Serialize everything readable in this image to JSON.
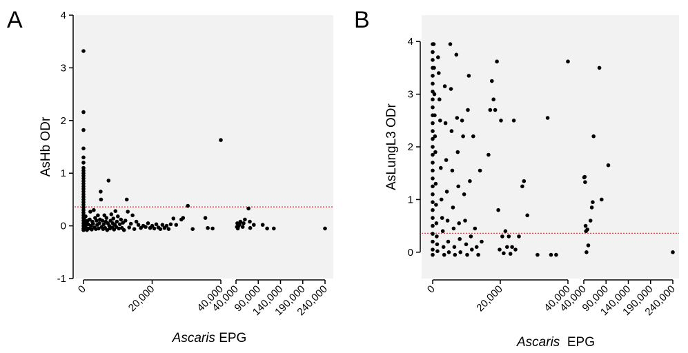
{
  "chart_data": [
    {
      "panel": "A",
      "type": "scatter",
      "ylabel": "AsHb ODr",
      "xlabel_italic": "Ascaris",
      "xlabel_rest": " EPG",
      "ylim": [
        -1,
        4
      ],
      "yticks": [
        -1,
        0,
        1,
        2,
        3,
        4
      ],
      "x_segments": [
        {
          "from": 0,
          "to": 40000,
          "ticks": [
            0,
            20000,
            40000
          ],
          "labels": [
            "0",
            "20,000",
            "40,000"
          ]
        },
        {
          "from": 40000,
          "to": 240000,
          "ticks": [
            40000,
            90000,
            140000,
            190000,
            240000
          ],
          "labels": [
            "40,000",
            "90,000",
            "140,000",
            "190,000",
            "240,000"
          ]
        }
      ],
      "cutoff": 0.36,
      "cutoff_color": "#e03030",
      "points": [
        [
          0,
          3.32
        ],
        [
          0,
          2.16
        ],
        [
          0,
          1.82
        ],
        [
          0,
          1.47
        ],
        [
          0,
          1.3
        ],
        [
          0,
          1.2
        ],
        [
          0,
          1.1
        ],
        [
          0,
          1.05
        ],
        [
          0,
          1.0
        ],
        [
          0,
          0.95
        ],
        [
          0,
          0.9
        ],
        [
          0,
          0.85
        ],
        [
          0,
          0.8
        ],
        [
          0,
          0.75
        ],
        [
          0,
          0.7
        ],
        [
          0,
          0.65
        ],
        [
          0,
          0.6
        ],
        [
          0,
          0.55
        ],
        [
          0,
          0.5
        ],
        [
          0,
          0.45
        ],
        [
          0,
          0.4
        ],
        [
          0,
          0.35
        ],
        [
          0,
          0.3
        ],
        [
          0,
          0.25
        ],
        [
          0,
          0.2
        ],
        [
          0,
          0.15
        ],
        [
          0,
          0.1
        ],
        [
          0,
          0.05
        ],
        [
          0,
          0.0
        ],
        [
          0,
          -0.05
        ],
        [
          0,
          -0.08
        ],
        [
          200,
          0.12
        ],
        [
          300,
          -0.02
        ],
        [
          400,
          0.05
        ],
        [
          500,
          -0.06
        ],
        [
          600,
          0.18
        ],
        [
          700,
          0.02
        ],
        [
          800,
          -0.04
        ],
        [
          900,
          0.08
        ],
        [
          1000,
          -0.08
        ],
        [
          1200,
          0.1
        ],
        [
          1400,
          0.03
        ],
        [
          1600,
          -0.05
        ],
        [
          1800,
          0.12
        ],
        [
          2000,
          0.27
        ],
        [
          2200,
          0.0
        ],
        [
          2400,
          -0.07
        ],
        [
          2600,
          0.08
        ],
        [
          2800,
          0.04
        ],
        [
          3000,
          0.3
        ],
        [
          3200,
          -0.03
        ],
        [
          3400,
          0.15
        ],
        [
          3600,
          -0.06
        ],
        [
          3800,
          0.1
        ],
        [
          4000,
          0.02
        ],
        [
          4200,
          0.2
        ],
        [
          4400,
          -0.05
        ],
        [
          4600,
          0.05
        ],
        [
          4800,
          0.12
        ],
        [
          5000,
          0.65
        ],
        [
          5100,
          0.5
        ],
        [
          5300,
          -0.02
        ],
        [
          5500,
          0.1
        ],
        [
          5700,
          -0.06
        ],
        [
          5900,
          0.03
        ],
        [
          6100,
          0.2
        ],
        [
          6300,
          -0.04
        ],
        [
          6500,
          0.08
        ],
        [
          6700,
          0.15
        ],
        [
          6900,
          -0.08
        ],
        [
          7100,
          0.05
        ],
        [
          7300,
          0.86
        ],
        [
          7500,
          0.0
        ],
        [
          7700,
          -0.05
        ],
        [
          7900,
          0.1
        ],
        [
          8100,
          0.22
        ],
        [
          8300,
          -0.03
        ],
        [
          8500,
          0.05
        ],
        [
          8700,
          0.14
        ],
        [
          8900,
          -0.07
        ],
        [
          9100,
          0.02
        ],
        [
          9300,
          0.28
        ],
        [
          9500,
          -0.02
        ],
        [
          9700,
          0.08
        ],
        [
          10000,
          0.18
        ],
        [
          10300,
          -0.05
        ],
        [
          10600,
          0.03
        ],
        [
          10900,
          0.12
        ],
        [
          11200,
          -0.04
        ],
        [
          11500,
          0.06
        ],
        [
          11800,
          -0.08
        ],
        [
          12200,
          0.1
        ],
        [
          12600,
          0.5
        ],
        [
          12900,
          0.27
        ],
        [
          13300,
          -0.03
        ],
        [
          13800,
          0.04
        ],
        [
          14300,
          0.2
        ],
        [
          14800,
          -0.06
        ],
        [
          15400,
          0.08
        ],
        [
          16000,
          0.02
        ],
        [
          16700,
          -0.04
        ],
        [
          17400,
          0.0
        ],
        [
          18100,
          -0.02
        ],
        [
          18800,
          0.05
        ],
        [
          19400,
          -0.04
        ],
        [
          20000,
          0.0
        ],
        [
          20600,
          -0.05
        ],
        [
          21200,
          0.03
        ],
        [
          21800,
          -0.03
        ],
        [
          22400,
          -0.06
        ],
        [
          23000,
          0.02
        ],
        [
          23600,
          -0.04
        ],
        [
          24200,
          0.0
        ],
        [
          24800,
          -0.06
        ],
        [
          25400,
          0.03
        ],
        [
          26200,
          0.14
        ],
        [
          27000,
          0.02
        ],
        [
          28500,
          0.12
        ],
        [
          29000,
          0.15
        ],
        [
          30400,
          0.38
        ],
        [
          31800,
          -0.06
        ],
        [
          35500,
          0.15
        ],
        [
          36200,
          -0.04
        ],
        [
          37600,
          -0.05
        ],
        [
          40000,
          1.63
        ],
        [
          42000,
          -0.02
        ],
        [
          43000,
          0.05
        ],
        [
          44000,
          -0.05
        ],
        [
          46000,
          0.0
        ],
        [
          48000,
          0.03
        ],
        [
          50000,
          0.08
        ],
        [
          55000,
          -0.02
        ],
        [
          57000,
          0.05
        ],
        [
          60000,
          0.12
        ],
        [
          68000,
          0.33
        ],
        [
          71000,
          0.08
        ],
        [
          72000,
          -0.04
        ],
        [
          80000,
          0.02
        ],
        [
          100000,
          0.02
        ],
        [
          110000,
          -0.05
        ],
        [
          125000,
          -0.05
        ],
        [
          240000,
          -0.05
        ]
      ]
    },
    {
      "panel": "B",
      "type": "scatter",
      "ylabel": "AsLungL3 ODr",
      "xlabel_italic": "Ascaris",
      "xlabel_rest": "  EPG",
      "ylim": [
        -0.5,
        4.5
      ],
      "yticks": [
        0,
        1,
        2,
        3,
        4
      ],
      "x_segments": [
        {
          "from": 0,
          "to": 40000,
          "ticks": [
            0,
            20000,
            40000
          ],
          "labels": [
            "0",
            "20,000",
            "40,000"
          ]
        },
        {
          "from": 40000,
          "to": 240000,
          "ticks": [
            40000,
            90000,
            140000,
            190000,
            240000
          ],
          "labels": [
            "40,000",
            "90,000",
            "140,000",
            "190,000",
            "240,000"
          ]
        }
      ],
      "cutoff": 0.36,
      "cutoff_color": "#e03030",
      "points": [
        [
          0,
          3.95
        ],
        [
          0,
          3.8
        ],
        [
          0,
          3.65
        ],
        [
          0,
          3.5
        ],
        [
          0,
          3.35
        ],
        [
          0,
          3.2
        ],
        [
          0,
          3.05
        ],
        [
          0,
          2.9
        ],
        [
          0,
          2.75
        ],
        [
          0,
          2.6
        ],
        [
          0,
          2.45
        ],
        [
          0,
          2.3
        ],
        [
          0,
          2.15
        ],
        [
          0,
          2.0
        ],
        [
          0,
          1.85
        ],
        [
          0,
          1.7
        ],
        [
          0,
          1.55
        ],
        [
          0,
          1.4
        ],
        [
          0,
          1.25
        ],
        [
          0,
          1.1
        ],
        [
          0,
          0.95
        ],
        [
          0,
          0.8
        ],
        [
          0,
          0.65
        ],
        [
          0,
          0.5
        ],
        [
          0,
          0.35
        ],
        [
          0,
          0.2
        ],
        [
          0,
          0.05
        ],
        [
          0,
          -0.05
        ],
        [
          300,
          3.95
        ],
        [
          400,
          3.5
        ],
        [
          500,
          3.0
        ],
        [
          600,
          2.6
        ],
        [
          700,
          2.2
        ],
        [
          800,
          1.9
        ],
        [
          900,
          1.3
        ],
        [
          1000,
          0.9
        ],
        [
          1100,
          0.55
        ],
        [
          1200,
          0.3
        ],
        [
          1300,
          0.15
        ],
        [
          1400,
          0.02
        ],
        [
          1600,
          3.7
        ],
        [
          1800,
          3.4
        ],
        [
          2000,
          2.9
        ],
        [
          2200,
          2.5
        ],
        [
          2400,
          1.6
        ],
        [
          2600,
          1.0
        ],
        [
          2800,
          0.65
        ],
        [
          3000,
          0.4
        ],
        [
          3200,
          0.1
        ],
        [
          3400,
          -0.05
        ],
        [
          3600,
          3.15
        ],
        [
          3800,
          2.45
        ],
        [
          4000,
          1.75
        ],
        [
          4200,
          1.15
        ],
        [
          4400,
          0.6
        ],
        [
          4600,
          0.2
        ],
        [
          4800,
          0.0
        ],
        [
          5200,
          3.95
        ],
        [
          5400,
          3.1
        ],
        [
          5600,
          2.3
        ],
        [
          5800,
          1.55
        ],
        [
          6000,
          0.85
        ],
        [
          6200,
          0.45
        ],
        [
          6400,
          0.1
        ],
        [
          6600,
          -0.05
        ],
        [
          7000,
          3.75
        ],
        [
          7200,
          2.55
        ],
        [
          7400,
          1.9
        ],
        [
          7600,
          1.25
        ],
        [
          7800,
          0.55
        ],
        [
          8000,
          0.25
        ],
        [
          8200,
          0.0
        ],
        [
          8700,
          2.5
        ],
        [
          9000,
          2.2
        ],
        [
          9300,
          1.1
        ],
        [
          9600,
          0.6
        ],
        [
          9900,
          0.15
        ],
        [
          10200,
          -0.05
        ],
        [
          10400,
          2.7
        ],
        [
          10700,
          3.35
        ],
        [
          11000,
          1.35
        ],
        [
          11300,
          0.3
        ],
        [
          11600,
          0.05
        ],
        [
          12000,
          2.2
        ],
        [
          12500,
          0.45
        ],
        [
          13000,
          0.1
        ],
        [
          13500,
          -0.05
        ],
        [
          14000,
          1.55
        ],
        [
          14500,
          0.2
        ],
        [
          16500,
          1.85
        ],
        [
          17000,
          2.7
        ],
        [
          17500,
          3.25
        ],
        [
          18000,
          2.9
        ],
        [
          18500,
          2.7
        ],
        [
          19000,
          3.62
        ],
        [
          19400,
          0.8
        ],
        [
          19800,
          0.05
        ],
        [
          20200,
          2.5
        ],
        [
          20600,
          0.3
        ],
        [
          21000,
          -0.02
        ],
        [
          21500,
          0.4
        ],
        [
          22000,
          0.1
        ],
        [
          22500,
          0.3
        ],
        [
          23000,
          -0.03
        ],
        [
          23500,
          0.1
        ],
        [
          24000,
          2.5
        ],
        [
          24500,
          0.05
        ],
        [
          25500,
          0.3
        ],
        [
          26500,
          1.25
        ],
        [
          27000,
          1.35
        ],
        [
          28000,
          0.7
        ],
        [
          31000,
          -0.05
        ],
        [
          34000,
          2.55
        ],
        [
          35000,
          -0.05
        ],
        [
          36500,
          -0.05
        ],
        [
          40000,
          3.62
        ],
        [
          41000,
          1.42
        ],
        [
          42000,
          1.43
        ],
        [
          43000,
          1.33
        ],
        [
          44000,
          0.5
        ],
        [
          45000,
          0.4
        ],
        [
          46000,
          0.0
        ],
        [
          48000,
          0.43
        ],
        [
          50000,
          0.13
        ],
        [
          55000,
          0.6
        ],
        [
          58000,
          0.85
        ],
        [
          60000,
          0.95
        ],
        [
          62000,
          2.2
        ],
        [
          75000,
          3.5
        ],
        [
          80000,
          1.0
        ],
        [
          95000,
          1.65
        ],
        [
          240000,
          0.0
        ]
      ]
    }
  ]
}
